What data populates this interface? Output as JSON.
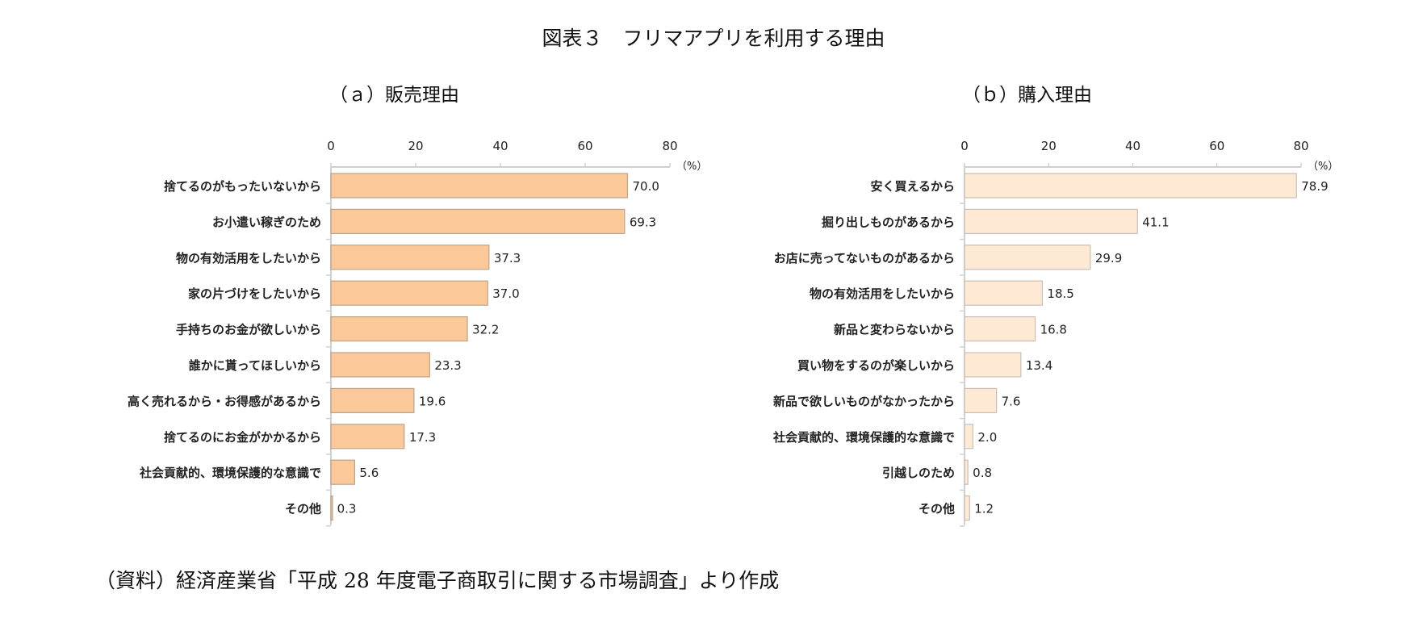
{
  "title": "図表３　フリマアプリを利用する理由",
  "footer": "（資料）経済産業省「平成 28 年度電子商取引に関する市場調査」より作成",
  "chart_data": [
    {
      "type": "bar",
      "orientation": "horizontal",
      "title": "（ａ）販売理由",
      "unit_label": "（%）",
      "xlim": [
        0,
        80
      ],
      "ticks": [
        0,
        20,
        40,
        60,
        80
      ],
      "color": "#fbc999",
      "categories": [
        "捨てるのがもったいないから",
        "お小遣い稼ぎのため",
        "物の有効活用をしたいから",
        "家の片づけをしたいから",
        "手持ちのお金が欲しいから",
        "誰かに貰ってほしいから",
        "高く売れるから・お得感があるから",
        "捨てるのにお金がかかるから",
        "社会貢献的、環境保護的な意識で",
        "その他"
      ],
      "values": [
        70.0,
        69.3,
        37.3,
        37.0,
        32.2,
        23.3,
        19.6,
        17.3,
        5.6,
        0.3
      ],
      "labels": [
        "70.0",
        "69.3",
        "37.3",
        "37.0",
        "32.2",
        "23.3",
        "19.6",
        "17.3",
        "5.6",
        "0.3"
      ]
    },
    {
      "type": "bar",
      "orientation": "horizontal",
      "title": "（ｂ）購入理由",
      "unit_label": "（%）",
      "xlim": [
        0,
        80
      ],
      "ticks": [
        0,
        20,
        40,
        60,
        80
      ],
      "color": "#fde9d4",
      "categories": [
        "安く買えるから",
        "掘り出しものがあるから",
        "お店に売ってないものがあるから",
        "物の有効活用をしたいから",
        "新品と変わらないから",
        "買い物をするのが楽しいから",
        "新品で欲しいものがなかったから",
        "社会貢献的、環境保護的な意識で",
        "引越しのため",
        "その他"
      ],
      "values": [
        78.9,
        41.1,
        29.9,
        18.5,
        16.8,
        13.4,
        7.6,
        2.0,
        0.8,
        1.2
      ],
      "labels": [
        "78.9",
        "41.1",
        "29.9",
        "18.5",
        "16.8",
        "13.4",
        "7.6",
        "2.0",
        "0.8",
        "1.2"
      ]
    }
  ]
}
